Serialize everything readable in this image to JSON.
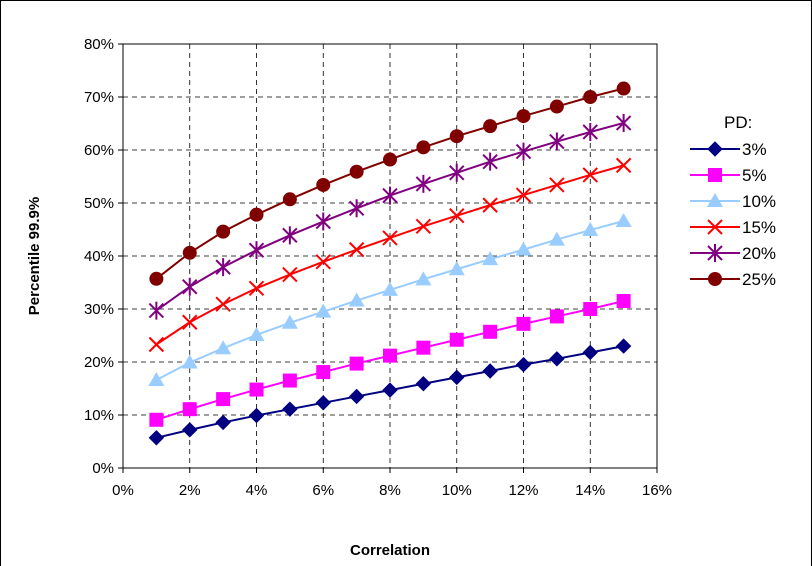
{
  "chart_data": {
    "type": "line",
    "xlabel": "Correlation",
    "ylabel": "Percentile 99.9%",
    "xlim": [
      0,
      0.16
    ],
    "ylim": [
      0,
      0.8
    ],
    "x_ticks": [
      "0%",
      "2%",
      "4%",
      "6%",
      "8%",
      "10%",
      "12%",
      "14%",
      "16%"
    ],
    "y_ticks": [
      "0%",
      "10%",
      "20%",
      "30%",
      "40%",
      "50%",
      "60%",
      "70%",
      "80%"
    ],
    "grid": true,
    "legend": {
      "title": "PD:",
      "position": "right"
    },
    "x": [
      0.01,
      0.02,
      0.03,
      0.04,
      0.05,
      0.06,
      0.07,
      0.08,
      0.09,
      0.1,
      0.11,
      0.12,
      0.13,
      0.14,
      0.15
    ],
    "series": [
      {
        "name": "3%",
        "color": "#000080",
        "marker": "diamond",
        "values": [
          0.057,
          0.072,
          0.086,
          0.099,
          0.111,
          0.123,
          0.135,
          0.147,
          0.159,
          0.171,
          0.183,
          0.195,
          0.206,
          0.218,
          0.23
        ]
      },
      {
        "name": "5%",
        "color": "#FF00FF",
        "marker": "square",
        "values": [
          0.091,
          0.111,
          0.13,
          0.148,
          0.165,
          0.181,
          0.197,
          0.212,
          0.227,
          0.242,
          0.257,
          0.272,
          0.286,
          0.3,
          0.315
        ]
      },
      {
        "name": "10%",
        "color": "#99CCFF",
        "marker": "triangle",
        "values": [
          0.166,
          0.199,
          0.226,
          0.251,
          0.274,
          0.295,
          0.316,
          0.336,
          0.356,
          0.375,
          0.394,
          0.412,
          0.431,
          0.449,
          0.466
        ]
      },
      {
        "name": "15%",
        "color": "#FF0000",
        "marker": "x",
        "values": [
          0.233,
          0.275,
          0.309,
          0.339,
          0.365,
          0.389,
          0.412,
          0.434,
          0.456,
          0.476,
          0.496,
          0.515,
          0.534,
          0.553,
          0.571
        ]
      },
      {
        "name": "20%",
        "color": "#800080",
        "marker": "star",
        "values": [
          0.297,
          0.342,
          0.379,
          0.411,
          0.439,
          0.465,
          0.49,
          0.514,
          0.536,
          0.557,
          0.578,
          0.597,
          0.616,
          0.634,
          0.651
        ]
      },
      {
        "name": "25%",
        "color": "#800000",
        "marker": "circle",
        "values": [
          0.357,
          0.406,
          0.446,
          0.478,
          0.507,
          0.534,
          0.559,
          0.582,
          0.605,
          0.626,
          0.645,
          0.664,
          0.682,
          0.7,
          0.716
        ]
      }
    ]
  }
}
